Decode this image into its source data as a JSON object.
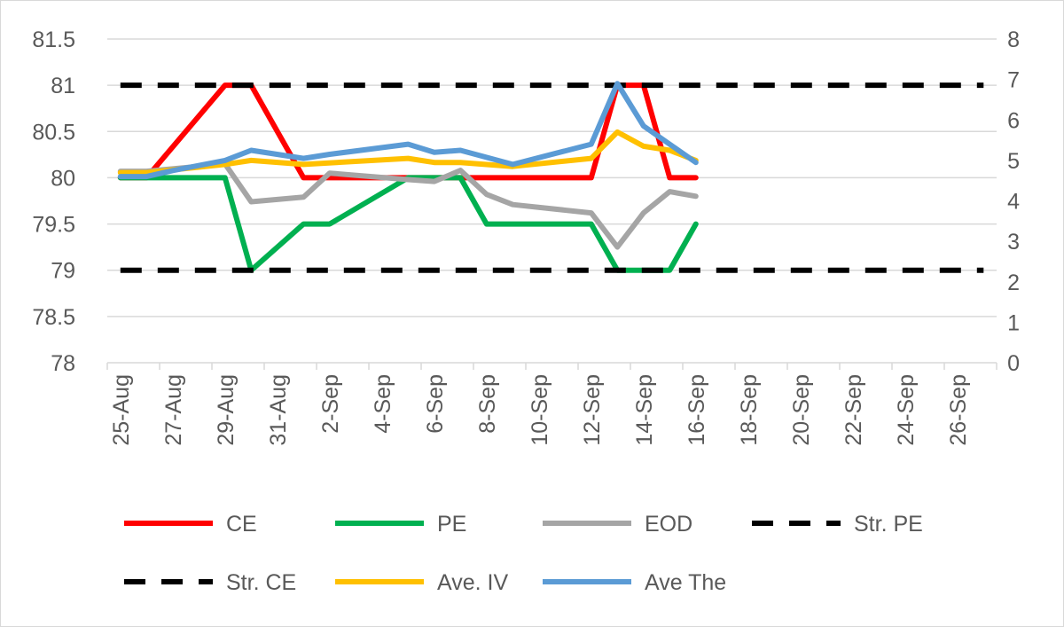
{
  "chart_data": {
    "type": "line",
    "x_labels": [
      "25-Aug",
      "27-Aug",
      "29-Aug",
      "31-Aug",
      "2-Sep",
      "4-Sep",
      "6-Sep",
      "8-Sep",
      "10-Sep",
      "12-Sep",
      "14-Sep",
      "16-Sep",
      "18-Sep",
      "20-Sep",
      "22-Sep",
      "24-Sep",
      "26-Sep"
    ],
    "x_range": [
      "25-Aug",
      "27-Sep"
    ],
    "y_left": {
      "min": 78,
      "max": 81.5,
      "step": 0.5,
      "ticks": [
        "78",
        "78.5",
        "79",
        "79.5",
        "80",
        "80.5",
        "81",
        "81.5"
      ]
    },
    "y_right": {
      "min": 0,
      "max": 8,
      "step": 1,
      "ticks": [
        "0",
        "1",
        "2",
        "3",
        "4",
        "5",
        "6",
        "7",
        "8"
      ]
    },
    "grid": "horizontal",
    "legend": "bottom",
    "series": [
      {
        "name": "CE",
        "axis": "left",
        "color": "#ff0000",
        "dash": false,
        "points": [
          [
            "25-Aug",
            80
          ],
          [
            "26-Aug",
            80
          ],
          [
            "29-Aug",
            81
          ],
          [
            "30-Aug",
            81
          ],
          [
            "1-Sep",
            80
          ],
          [
            "2-Sep",
            80
          ],
          [
            "12-Sep",
            80
          ],
          [
            "13-Sep",
            81
          ],
          [
            "14-Sep",
            81
          ],
          [
            "15-Sep",
            80
          ],
          [
            "16-Sep",
            80
          ]
        ]
      },
      {
        "name": "PE",
        "axis": "left",
        "color": "#00b050",
        "dash": false,
        "points": [
          [
            "25-Aug",
            80
          ],
          [
            "29-Aug",
            80
          ],
          [
            "30-Aug",
            79
          ],
          [
            "1-Sep",
            79.5
          ],
          [
            "2-Sep",
            79.5
          ],
          [
            "5-Sep",
            80
          ],
          [
            "7-Sep",
            80
          ],
          [
            "8-Sep",
            79.5
          ],
          [
            "12-Sep",
            79.5
          ],
          [
            "13-Sep",
            79
          ],
          [
            "15-Sep",
            79
          ],
          [
            "16-Sep",
            79.5
          ]
        ]
      },
      {
        "name": "EOD",
        "axis": "left",
        "color": "#a5a5a5",
        "dash": false,
        "points": [
          [
            "25-Aug",
            80.07
          ],
          [
            "26-Aug",
            80.07
          ],
          [
            "29-Aug",
            80.15
          ],
          [
            "30-Aug",
            79.74
          ],
          [
            "1-Sep",
            79.79
          ],
          [
            "2-Sep",
            80.05
          ],
          [
            "5-Sep",
            79.98
          ],
          [
            "6-Sep",
            79.96
          ],
          [
            "7-Sep",
            80.08
          ],
          [
            "8-Sep",
            79.82
          ],
          [
            "9-Sep",
            79.71
          ],
          [
            "12-Sep",
            79.62
          ],
          [
            "13-Sep",
            79.25
          ],
          [
            "14-Sep",
            79.62
          ],
          [
            "15-Sep",
            79.85
          ],
          [
            "16-Sep",
            79.8
          ]
        ]
      },
      {
        "name": "Str. PE",
        "axis": "left",
        "color": "#000000",
        "dash": true,
        "points": [
          [
            "25-Aug",
            81
          ],
          [
            "27-Sep",
            81
          ]
        ]
      },
      {
        "name": "Str. CE",
        "axis": "left",
        "color": "#000000",
        "dash": true,
        "points": [
          [
            "25-Aug",
            79
          ],
          [
            "27-Sep",
            79
          ]
        ]
      },
      {
        "name": "Ave. IV",
        "axis": "right",
        "color": "#ffc000",
        "dash": false,
        "points": [
          [
            "25-Aug",
            4.7
          ],
          [
            "26-Aug",
            4.7
          ],
          [
            "29-Aug",
            4.9
          ],
          [
            "30-Aug",
            5.0
          ],
          [
            "1-Sep",
            4.9
          ],
          [
            "5-Sep",
            5.05
          ],
          [
            "6-Sep",
            4.95
          ],
          [
            "7-Sep",
            4.95
          ],
          [
            "9-Sep",
            4.85
          ],
          [
            "12-Sep",
            5.05
          ],
          [
            "13-Sep",
            5.7
          ],
          [
            "14-Sep",
            5.35
          ],
          [
            "15-Sep",
            5.25
          ],
          [
            "16-Sep",
            5.0
          ]
        ]
      },
      {
        "name": "Ave The",
        "axis": "right",
        "color": "#5b9bd5",
        "dash": false,
        "points": [
          [
            "25-Aug",
            4.6
          ],
          [
            "26-Aug",
            4.6
          ],
          [
            "27-Aug",
            4.75
          ],
          [
            "29-Aug",
            5.0
          ],
          [
            "30-Aug",
            5.25
          ],
          [
            "1-Sep",
            5.05
          ],
          [
            "2-Sep",
            5.15
          ],
          [
            "5-Sep",
            5.4
          ],
          [
            "6-Sep",
            5.2
          ],
          [
            "7-Sep",
            5.25
          ],
          [
            "9-Sep",
            4.9
          ],
          [
            "12-Sep",
            5.4
          ],
          [
            "13-Sep",
            6.9
          ],
          [
            "14-Sep",
            5.85
          ],
          [
            "16-Sep",
            4.95
          ]
        ]
      }
    ]
  }
}
